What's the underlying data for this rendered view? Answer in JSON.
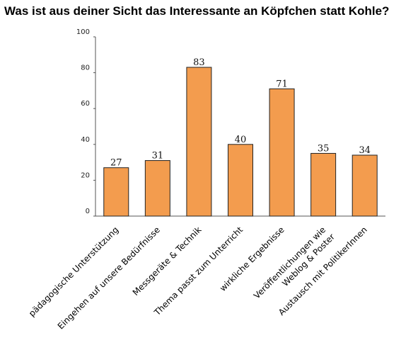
{
  "chart_data": {
    "type": "bar",
    "title": "Was ist aus deiner Sicht das Interessante an Köpfchen statt Kohle?",
    "xlabel": "",
    "ylabel": "",
    "ylim": [
      0,
      100
    ],
    "yticks": [
      0,
      20,
      40,
      60,
      80,
      100
    ],
    "grid": false,
    "legend": "none",
    "bar_color": "#f39c4e",
    "bar_edge_color": "#222222",
    "categories": [
      [
        "pädagogische Unterstützung"
      ],
      [
        "Eingehen auf unsere Bedürfnisse"
      ],
      [
        "Messgeräte & Technik"
      ],
      [
        "Thema passt zum Unterricht"
      ],
      [
        "wirkliche Ergebnisse"
      ],
      [
        "Veröffentlichungen wie",
        "Weblog & Poster"
      ],
      [
        "Austausch mit PolitikerInnen"
      ]
    ],
    "values": [
      27,
      31,
      83,
      40,
      71,
      35,
      34
    ]
  }
}
